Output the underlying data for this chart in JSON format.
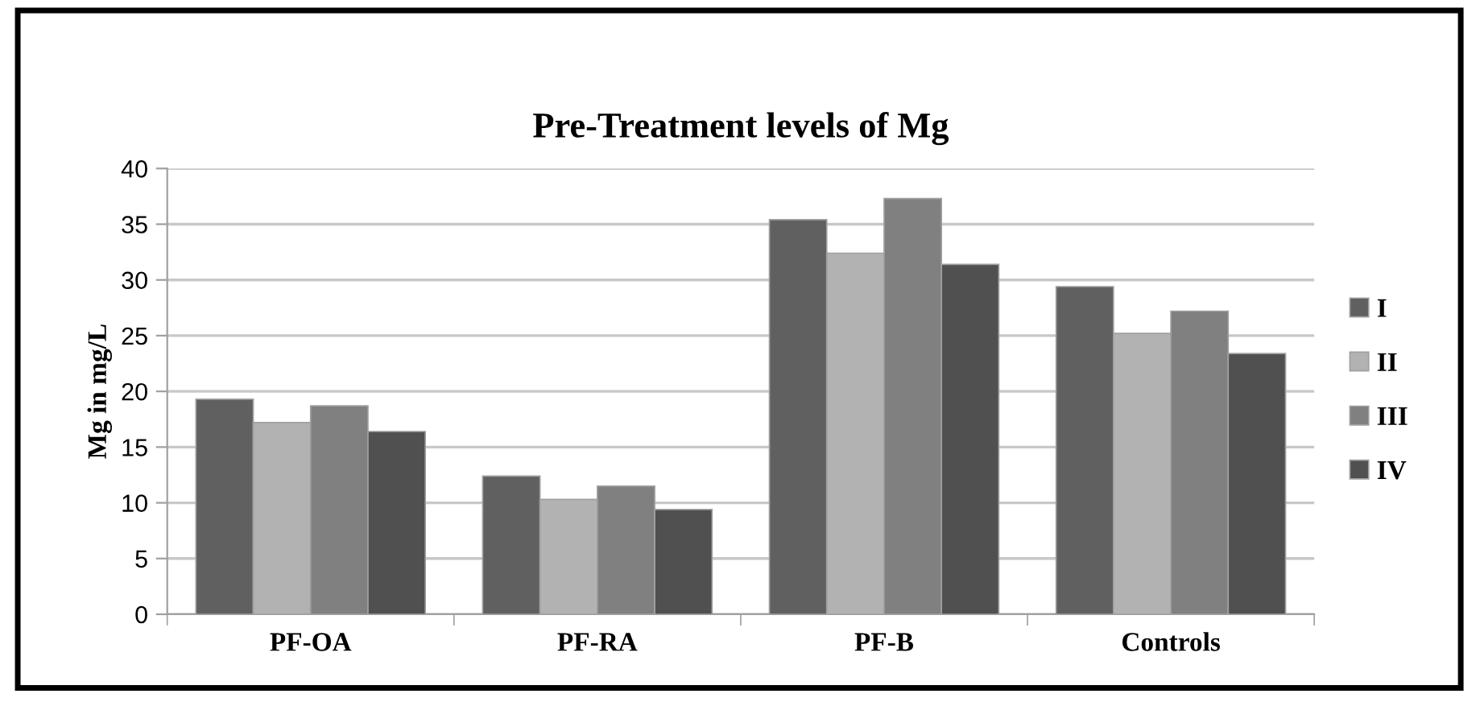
{
  "chart_data": {
    "type": "bar",
    "title": "Pre-Treatment levels of Mg",
    "ylabel": "Mg in mg/L",
    "categories": [
      "PF-OA",
      "PF-RA",
      "PF-B",
      "Controls"
    ],
    "series": [
      {
        "name": "I",
        "color": "#606060",
        "values": [
          19.3,
          12.4,
          35.4,
          29.4
        ]
      },
      {
        "name": "II",
        "color": "#b2b2b2",
        "values": [
          17.2,
          10.3,
          32.4,
          25.2
        ]
      },
      {
        "name": "III",
        "color": "#808080",
        "values": [
          18.7,
          11.5,
          37.3,
          27.2
        ]
      },
      {
        "name": "IV",
        "color": "#505050",
        "values": [
          16.4,
          9.4,
          31.4,
          23.4
        ]
      }
    ],
    "ylim": [
      0,
      40
    ],
    "yticks": [
      0,
      5,
      10,
      15,
      20,
      25,
      30,
      35,
      40
    ],
    "grid": "y",
    "legend": "right"
  }
}
